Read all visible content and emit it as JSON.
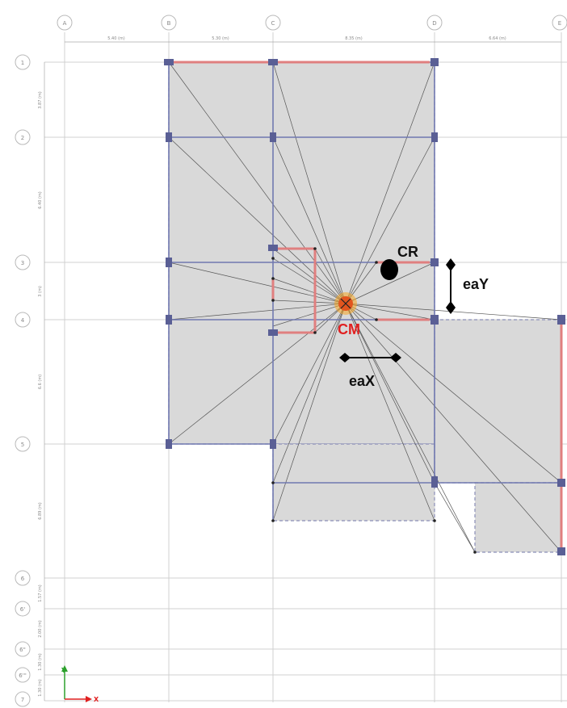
{
  "grid": {
    "x_axes": [
      "A",
      "B",
      "C",
      "D",
      "E"
    ],
    "y_axes": [
      "1",
      "2",
      "3",
      "4",
      "5",
      "6",
      "6'",
      "6\"",
      "6'\"",
      "7"
    ],
    "x_spacings": [
      "5.40 (m)",
      "5.30 (m)",
      "8.35 (m)",
      "6.64 (m)"
    ],
    "y_spacings": [
      "3.87 (m)",
      "6.40 (m)",
      "3 (m)",
      "6.6 (m)",
      "6.89 (m)",
      "1.57 (m)",
      "2.00 (m)",
      "1.30 (m)",
      "1.30 (m)"
    ]
  },
  "annotations": {
    "cr": "CR",
    "cm": "CM",
    "eax": "eaX",
    "eay": "eaY"
  },
  "axis_indicator": {
    "x": "X",
    "y": "Y"
  },
  "colors": {
    "slab": "#d9d9d9",
    "beam": "#7078b0",
    "wall": "#e07f7f",
    "cm": "#e02020",
    "cm_ring": "#f5a623"
  }
}
